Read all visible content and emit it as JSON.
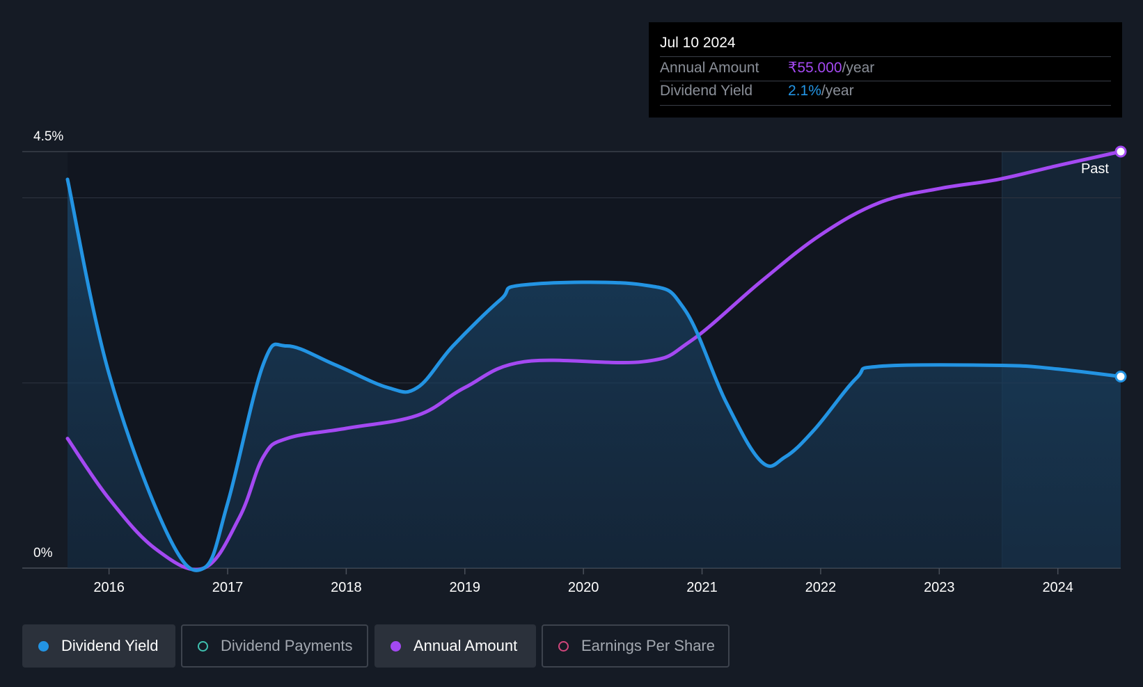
{
  "tooltip": {
    "date": "Jul 10 2024",
    "annual_amount_label": "Annual Amount",
    "annual_amount_value": "₹55.000",
    "annual_amount_unit": "/year",
    "dividend_yield_label": "Dividend Yield",
    "dividend_yield_value": "2.1%",
    "dividend_yield_unit": "/year"
  },
  "legend": {
    "dividend_yield": "Dividend Yield",
    "dividend_payments": "Dividend Payments",
    "annual_amount": "Annual Amount",
    "earnings_per_share": "Earnings Per Share"
  },
  "colors": {
    "background": "#151b25",
    "yield": "#2394e3",
    "annual_amount": "#a449f2",
    "dividend_payments": "#3fc1b0",
    "earnings_per_share": "#d1467c",
    "grid": "#2e3440"
  },
  "chart_data": {
    "type": "line",
    "x_ticks": [
      "2016",
      "2017",
      "2018",
      "2019",
      "2020",
      "2021",
      "2022",
      "2023",
      "2024"
    ],
    "y_tick_labels": [
      "4.5%",
      "0%"
    ],
    "ylim": [
      0,
      4.5
    ],
    "xlim": [
      2015.65,
      2024.53
    ],
    "past_label": "Past",
    "past_region_start": 2023.53,
    "grid": true,
    "series": [
      {
        "name": "Dividend Yield",
        "color": "#2394e3",
        "fill": true,
        "points": [
          [
            2015.65,
            4.2
          ],
          [
            2016.0,
            2.1
          ],
          [
            2016.5,
            0.35
          ],
          [
            2016.8,
            0.0
          ],
          [
            2017.0,
            0.7
          ],
          [
            2017.3,
            2.2
          ],
          [
            2017.5,
            2.4
          ],
          [
            2017.9,
            2.2
          ],
          [
            2018.35,
            1.95
          ],
          [
            2018.6,
            1.95
          ],
          [
            2018.9,
            2.4
          ],
          [
            2019.3,
            2.9
          ],
          [
            2019.5,
            3.06
          ],
          [
            2020.5,
            3.06
          ],
          [
            2020.85,
            2.8
          ],
          [
            2021.2,
            1.8
          ],
          [
            2021.5,
            1.15
          ],
          [
            2021.7,
            1.2
          ],
          [
            2021.95,
            1.5
          ],
          [
            2022.3,
            2.05
          ],
          [
            2022.5,
            2.18
          ],
          [
            2023.53,
            2.19
          ],
          [
            2024.0,
            2.15
          ],
          [
            2024.53,
            2.07
          ]
        ]
      },
      {
        "name": "Annual Amount",
        "color": "#a449f2",
        "fill": false,
        "points": [
          [
            2015.65,
            1.4
          ],
          [
            2016.0,
            0.75
          ],
          [
            2016.4,
            0.2
          ],
          [
            2016.8,
            0.0
          ],
          [
            2017.1,
            0.55
          ],
          [
            2017.3,
            1.2
          ],
          [
            2017.5,
            1.4
          ],
          [
            2018.0,
            1.51
          ],
          [
            2018.6,
            1.65
          ],
          [
            2019.0,
            1.95
          ],
          [
            2019.5,
            2.23
          ],
          [
            2020.5,
            2.23
          ],
          [
            2020.9,
            2.45
          ],
          [
            2021.5,
            3.1
          ],
          [
            2022.0,
            3.6
          ],
          [
            2022.5,
            3.95
          ],
          [
            2023.0,
            4.1
          ],
          [
            2023.5,
            4.2
          ],
          [
            2024.0,
            4.35
          ],
          [
            2024.53,
            4.5
          ]
        ]
      }
    ]
  }
}
